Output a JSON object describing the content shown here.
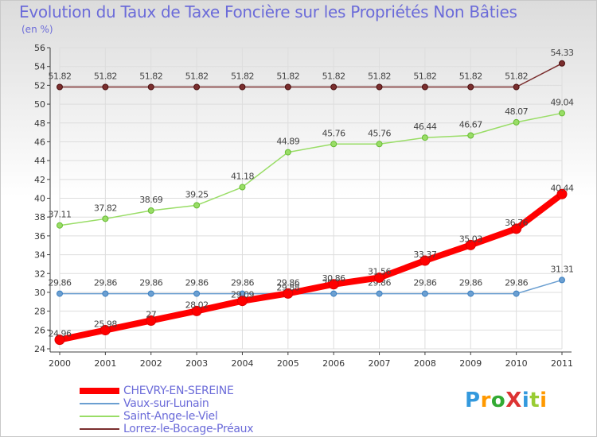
{
  "title": "Evolution du Taux de Taxe Foncière sur les Propriétés Non Bâties",
  "unit": "(en %)",
  "brand": "ProXiti",
  "colors": {
    "title": "#6b6bd9",
    "axis": "#404040",
    "grid": "#dddddd"
  },
  "chart_data": {
    "type": "line",
    "x": [
      "2000",
      "2001",
      "2002",
      "2003",
      "2004",
      "2005",
      "2006",
      "2007",
      "2008",
      "2009",
      "2010",
      "2011"
    ],
    "ylim": [
      24,
      56
    ],
    "yticks": [
      24,
      26,
      28,
      30,
      32,
      34,
      36,
      38,
      40,
      42,
      44,
      46,
      48,
      50,
      52,
      54,
      56
    ],
    "grid": true,
    "legend": "bottom-left",
    "series": [
      {
        "name": "CHEVRY-EN-SEREINE",
        "color": "#ff0000",
        "values": [
          24.96,
          25.98,
          27,
          28.02,
          29.09,
          29.88,
          30.86,
          31.56,
          33.37,
          35.03,
          36.76,
          40.44
        ],
        "labels": [
          "24.96",
          "25.98",
          "27",
          "28.02",
          "29.09",
          "29.88",
          "30.86",
          "31.56",
          "33.37",
          "35.03",
          "36.76",
          "40.44"
        ]
      },
      {
        "name": "Vaux-sur-Lunain",
        "color": "#6b9fd1",
        "values": [
          29.86,
          29.86,
          29.86,
          29.86,
          29.86,
          29.86,
          29.86,
          29.86,
          29.86,
          29.86,
          29.86,
          31.31
        ],
        "labels": [
          "29.86",
          "29.86",
          "29.86",
          "29.86",
          "29.86",
          "29.86",
          "29.86",
          "29.86",
          "29.86",
          "29.86",
          "29.86",
          "31.31"
        ]
      },
      {
        "name": "Saint-Ange-le-Viel",
        "color": "#99dd66",
        "values": [
          37.11,
          37.82,
          38.69,
          39.25,
          41.18,
          44.89,
          45.76,
          45.76,
          46.44,
          46.67,
          48.07,
          49.04
        ],
        "labels": [
          "37.11",
          "37.82",
          "38.69",
          "39.25",
          "41.18",
          "44.89",
          "45.76",
          "45.76",
          "46.44",
          "46.67",
          "48.07",
          "49.04"
        ]
      },
      {
        "name": "Lorrez-le-Bocage-Préaux",
        "color": "#7a2e2e",
        "values": [
          51.82,
          51.82,
          51.82,
          51.82,
          51.82,
          51.82,
          51.82,
          51.82,
          51.82,
          51.82,
          51.82,
          54.33
        ],
        "labels": [
          "51.82",
          "51.82",
          "51.82",
          "51.82",
          "51.82",
          "51.82",
          "51.82",
          "51.82",
          "51.82",
          "51.82",
          "51.82",
          "54.33"
        ]
      }
    ]
  }
}
